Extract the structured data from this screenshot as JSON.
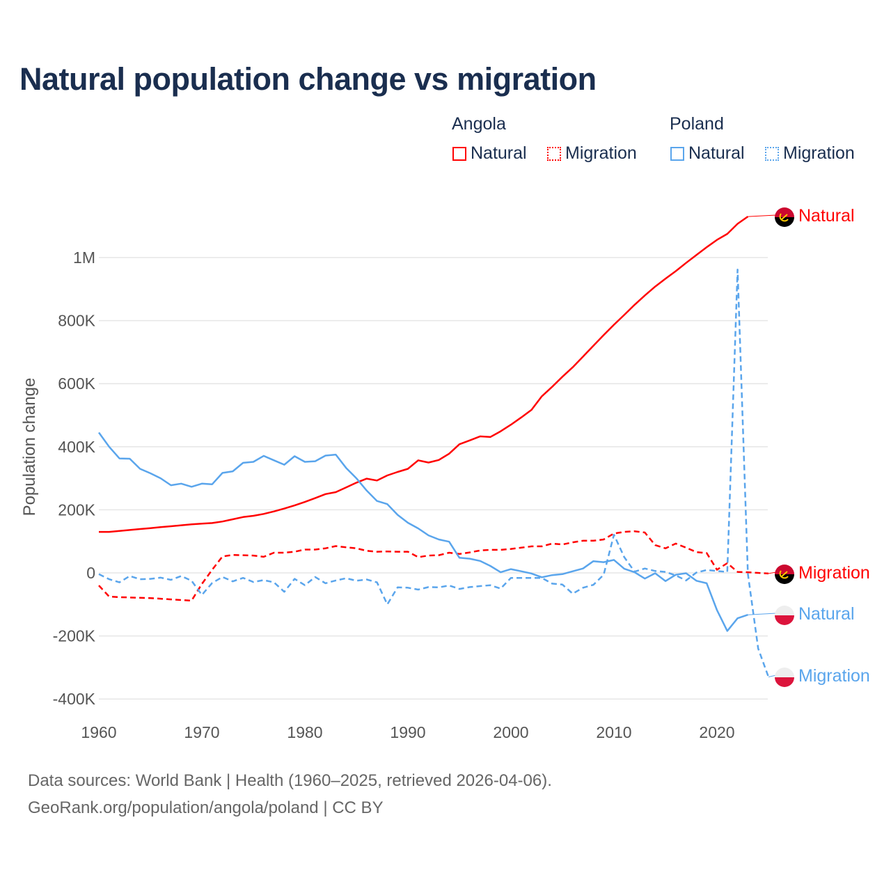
{
  "title": "Natural population change vs migration",
  "legend": {
    "groups": [
      {
        "name": "Angola",
        "items": [
          {
            "label": "Natural",
            "style": "solid"
          },
          {
            "label": "Migration",
            "style": "dotted"
          }
        ],
        "color": "#ff0000"
      },
      {
        "name": "Poland",
        "items": [
          {
            "label": "Natural",
            "style": "solid"
          },
          {
            "label": "Migration",
            "style": "dotted"
          }
        ],
        "color": "#5aa5ec"
      }
    ]
  },
  "footer": {
    "line1": "Data sources: World Bank | Health (1960–2025, retrieved 2026-04-06).",
    "line2": "GeoRank.org/population/angola/poland | CC BY"
  },
  "chart_data": {
    "type": "line",
    "title": "Natural population change vs migration",
    "xlabel": "",
    "ylabel": "Population change",
    "xlim": [
      1960,
      2025
    ],
    "ylim": [
      -400000,
      1000000
    ],
    "x_ticks": [
      1960,
      1970,
      1980,
      1990,
      2000,
      2010,
      2020
    ],
    "x_tick_labels": [
      "1960",
      "1970",
      "1980",
      "1990",
      "2000",
      "2010",
      "2020"
    ],
    "y_ticks": [
      -400000,
      -200000,
      0,
      200000,
      400000,
      600000,
      800000,
      1000000
    ],
    "y_tick_labels": [
      "-400K",
      "-200K",
      "0",
      "200K",
      "400K",
      "600K",
      "800K",
      "1M"
    ],
    "grid": true,
    "start_year": 1960,
    "series": [
      {
        "name": "Angola Natural",
        "end_label": "Natural",
        "country": "Angola",
        "color": "#ff0000",
        "dash": false,
        "values_k": [
          130,
          130,
          133,
          136,
          139,
          142,
          145,
          148,
          151,
          154,
          156,
          158,
          163,
          170,
          177,
          181,
          187,
          195,
          204,
          214,
          225,
          237,
          250,
          256,
          271,
          286,
          299,
          293,
          309,
          320,
          330,
          357,
          350,
          358,
          378,
          408,
          420,
          433,
          431,
          449,
          470,
          493,
          517,
          560,
          590,
          622,
          652,
          686,
          720,
          754,
          787,
          818,
          850,
          880,
          908,
          933,
          957,
          983,
          1008,
          1033,
          1056,
          1075,
          1107,
          1130
        ]
      },
      {
        "name": "Angola Migration",
        "end_label": "Migration",
        "country": "Angola",
        "color": "#ff0000",
        "dash": true,
        "values_k": [
          -40,
          -75,
          -77,
          -78,
          -79,
          -80,
          -82,
          -84,
          -86,
          -88,
          -35,
          10,
          52,
          57,
          56,
          55,
          51,
          64,
          64,
          67,
          74,
          74,
          78,
          85,
          81,
          78,
          70,
          67,
          68,
          67,
          67,
          50,
          55,
          56,
          64,
          60,
          65,
          71,
          73,
          73,
          76,
          80,
          84,
          84,
          93,
          90,
          97,
          102,
          102,
          106,
          125,
          130,
          132,
          128,
          88,
          78,
          93,
          80,
          66,
          63,
          10,
          31,
          3,
          2,
          0,
          -2
        ]
      },
      {
        "name": "Poland Natural",
        "end_label": "Natural",
        "country": "Poland",
        "color": "#5aa5ec",
        "dash": false,
        "values_k": [
          445,
          400,
          363,
          362,
          330,
          316,
          300,
          278,
          283,
          273,
          283,
          281,
          317,
          322,
          349,
          352,
          371,
          357,
          343,
          370,
          352,
          354,
          372,
          375,
          333,
          300,
          261,
          228,
          218,
          184,
          159,
          141,
          119,
          106,
          99,
          48,
          45,
          38,
          22,
          2,
          12,
          5,
          -2,
          -14,
          -7,
          -4,
          5,
          14,
          37,
          34,
          41,
          13,
          2,
          -18,
          -1,
          -26,
          -6,
          -1,
          -25,
          -33,
          -118,
          -184,
          -144,
          -133
        ]
      },
      {
        "name": "Poland Migration",
        "end_label": "Migration",
        "country": "Poland",
        "color": "#5aa5ec",
        "dash": true,
        "values_k": [
          -4,
          -20,
          -30,
          -10,
          -20,
          -19,
          -15,
          -22,
          -10,
          -25,
          -70,
          -32,
          -13,
          -27,
          -16,
          -29,
          -23,
          -30,
          -60,
          -19,
          -39,
          -13,
          -33,
          -24,
          -17,
          -25,
          -21,
          -30,
          -100,
          -46,
          -47,
          -53,
          -45,
          -46,
          -40,
          -51,
          -45,
          -42,
          -39,
          -50,
          -16,
          -16,
          -16,
          -16,
          -34,
          -37,
          -66,
          -47,
          -38,
          -6,
          121,
          50,
          4,
          14,
          6,
          3,
          -8,
          -24,
          1,
          9,
          6,
          3,
          962,
          -3,
          -240,
          -330
        ]
      }
    ]
  }
}
